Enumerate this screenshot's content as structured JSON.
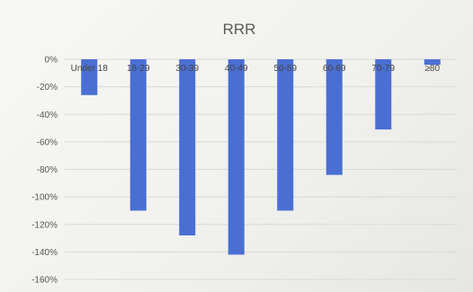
{
  "chart_data": {
    "type": "bar",
    "title": "RRR",
    "xlabel": "",
    "ylabel": "",
    "categories": [
      "Under 18",
      "18-29",
      "30-39",
      "40-49",
      "50-59",
      "60-69",
      "70-79",
      "≥80"
    ],
    "values": [
      -26,
      -110,
      -128,
      -142,
      -110,
      -84,
      -51,
      -4
    ],
    "ylim": [
      -160,
      0
    ],
    "yticks": [
      0,
      -20,
      -40,
      -60,
      -80,
      -100,
      -120,
      -140,
      -160
    ],
    "ytick_labels": [
      "0%",
      "-20%",
      "-40%",
      "-60%",
      "-80%",
      "-100%",
      "-120%",
      "-140%",
      "-160%"
    ],
    "grid": true,
    "legend": "none",
    "colors": {
      "bar": "#4a6fd3",
      "grid": "#d9d9d6"
    }
  }
}
